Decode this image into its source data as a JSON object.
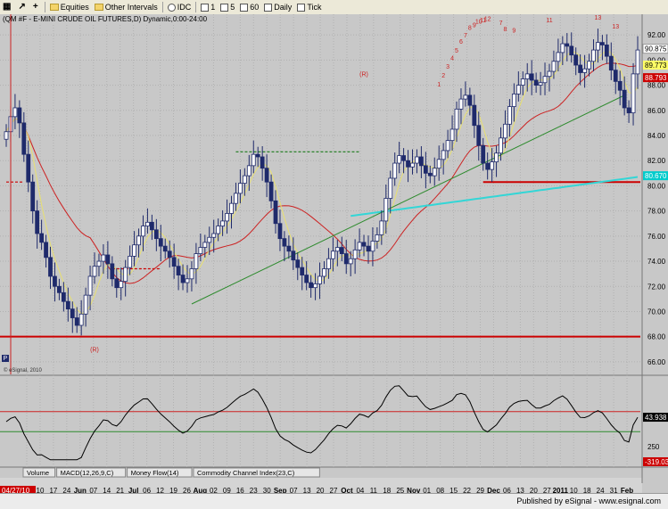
{
  "toolbar": {
    "items": [
      {
        "icon": "chart-icon",
        "label": ""
      },
      {
        "icon": "cursor-icon",
        "label": ""
      },
      {
        "icon": "add-icon",
        "label": "+"
      },
      {
        "icon": "folder-icon",
        "label": "Equities"
      },
      {
        "icon": "folder-icon",
        "label": "Other Intervals"
      },
      {
        "icon": "clock-icon",
        "label": "IDC"
      },
      {
        "icon": "grid-icon",
        "label": "1"
      },
      {
        "icon": "grid-icon",
        "label": "5"
      },
      {
        "icon": "grid-icon",
        "label": "60"
      },
      {
        "icon": "grid-icon",
        "label": "Daily"
      },
      {
        "icon": "grid-icon",
        "label": "Tick"
      }
    ]
  },
  "chart_title": "(QM #F - E-MINI CRUDE OIL FUTURES,D) Dynamic,0:00-24:00",
  "price_axis_ticks": [
    "92.00",
    "90.00",
    "88.00",
    "86.00",
    "84.00",
    "82.00",
    "80.00",
    "78.00",
    "76.00",
    "74.00",
    "72.00",
    "70.00",
    "68.00",
    "66.00"
  ],
  "price_badges": [
    {
      "value": "90.875",
      "color": "#ffffff",
      "bg": "#ffffff"
    },
    {
      "value": "89.773",
      "color": "#000000",
      "bg": "#ffff66"
    },
    {
      "value": "88.793",
      "color": "#ffffff",
      "bg": "#cc0000"
    },
    {
      "value": "80.670",
      "color": "#ffffff",
      "bg": "#00cccc"
    }
  ],
  "watermark": "© eSignal, 2010",
  "indicator_axis_ticks": [
    "250"
  ],
  "indicator_badges": [
    {
      "value": "43.938",
      "color": "#ffffff",
      "bg": "#000000"
    },
    {
      "value": "-319.03",
      "color": "#ffffff",
      "bg": "#cc0000"
    }
  ],
  "indicator_tabs": [
    "Volume",
    "MACD(12,26,9,C)",
    "Money Flow(14)",
    "Commodity Channel Index(23,C)"
  ],
  "date_start_badge": "04/27/10",
  "date_labels": [
    {
      "text": "May",
      "bold": true
    },
    {
      "text": "10",
      "bold": false
    },
    {
      "text": "17",
      "bold": false
    },
    {
      "text": "24",
      "bold": false
    },
    {
      "text": "Jun",
      "bold": true
    },
    {
      "text": "07",
      "bold": false
    },
    {
      "text": "14",
      "bold": false
    },
    {
      "text": "21",
      "bold": false
    },
    {
      "text": "Jul",
      "bold": true
    },
    {
      "text": "06",
      "bold": false
    },
    {
      "text": "12",
      "bold": false
    },
    {
      "text": "19",
      "bold": false
    },
    {
      "text": "26",
      "bold": false
    },
    {
      "text": "Aug",
      "bold": true
    },
    {
      "text": "02",
      "bold": false
    },
    {
      "text": "09",
      "bold": false
    },
    {
      "text": "16",
      "bold": false
    },
    {
      "text": "23",
      "bold": false
    },
    {
      "text": "30",
      "bold": false
    },
    {
      "text": "Sep",
      "bold": true
    },
    {
      "text": "07",
      "bold": false
    },
    {
      "text": "13",
      "bold": false
    },
    {
      "text": "20",
      "bold": false
    },
    {
      "text": "27",
      "bold": false
    },
    {
      "text": "Oct",
      "bold": true
    },
    {
      "text": "04",
      "bold": false
    },
    {
      "text": "11",
      "bold": false
    },
    {
      "text": "18",
      "bold": false
    },
    {
      "text": "25",
      "bold": false
    },
    {
      "text": "Nov",
      "bold": true
    },
    {
      "text": "01",
      "bold": false
    },
    {
      "text": "08",
      "bold": false
    },
    {
      "text": "15",
      "bold": false
    },
    {
      "text": "22",
      "bold": false
    },
    {
      "text": "29",
      "bold": false
    },
    {
      "text": "Dec",
      "bold": true
    },
    {
      "text": "06",
      "bold": false
    },
    {
      "text": "13",
      "bold": false
    },
    {
      "text": "20",
      "bold": false
    },
    {
      "text": "27",
      "bold": false
    },
    {
      "text": "2011",
      "bold": true
    },
    {
      "text": "10",
      "bold": false
    },
    {
      "text": "18",
      "bold": false
    },
    {
      "text": "24",
      "bold": false
    },
    {
      "text": "31",
      "bold": false
    },
    {
      "text": "Feb",
      "bold": true
    }
  ],
  "footer_text": "Published by eSignal - www.esignal.com",
  "chart_data": {
    "type": "line",
    "title": "(QM #F - E-MINI CRUDE OIL FUTURES,D) Dynamic,0:00-24:00",
    "price_ylim": [
      65,
      93.5
    ],
    "closes": [
      84.3,
      85.5,
      86.2,
      85.0,
      82.5,
      80.3,
      78.0,
      76.2,
      75.5,
      74.3,
      72.8,
      72.0,
      71.5,
      70.8,
      70.2,
      69.5,
      68.9,
      69.8,
      71.3,
      72.8,
      73.6,
      74.0,
      74.5,
      73.8,
      72.6,
      71.9,
      72.4,
      73.5,
      74.4,
      75.3,
      76.0,
      76.8,
      77.1,
      76.5,
      75.8,
      75.2,
      74.8,
      74.3,
      73.6,
      72.9,
      72.3,
      72.6,
      73.4,
      74.6,
      75.1,
      75.5,
      75.9,
      76.2,
      76.8,
      77.2,
      77.8,
      78.6,
      79.4,
      80.2,
      80.8,
      81.6,
      82.5,
      82.3,
      81.4,
      80.3,
      78.8,
      77.0,
      75.8,
      75.2,
      74.8,
      74.1,
      73.5,
      72.9,
      72.3,
      71.9,
      72.2,
      72.8,
      73.4,
      74.2,
      74.8,
      75.1,
      74.6,
      73.8,
      74.2,
      74.9,
      75.5,
      75.2,
      74.8,
      75.6,
      76.1,
      77.2,
      79.0,
      80.6,
      81.8,
      82.4,
      82.0,
      81.5,
      81.8,
      82.3,
      81.6,
      81.0,
      80.8,
      81.4,
      82.1,
      82.8,
      83.6,
      84.5,
      86.1,
      86.9,
      87.2,
      86.4,
      84.8,
      83.2,
      81.8,
      81.3,
      81.9,
      82.6,
      83.8,
      84.9,
      86.3,
      87.3,
      88.0,
      88.5,
      88.9,
      88.4,
      88.0,
      88.2,
      88.7,
      89.1,
      89.9,
      90.6,
      91.3,
      91.1,
      90.4,
      89.6,
      89.0,
      89.3,
      89.9,
      90.8,
      91.4,
      91.2,
      90.3,
      89.2,
      88.3,
      87.6,
      86.2,
      85.8,
      88.9,
      90.8
    ],
    "reference_lines": [
      {
        "name": "",
        "value": 68.0,
        "color": "#cc0000"
      },
      {
        "name": "",
        "value": 80.3,
        "color": "#cc0000"
      }
    ],
    "swing_labels": [
      "(R)",
      "(R)",
      "7",
      "8",
      "9",
      "11",
      "13",
      "1",
      "2",
      "3",
      "4",
      "5",
      "6",
      "7",
      "8",
      "9",
      "10",
      "11",
      "12",
      "13"
    ],
    "indicator": {
      "name": "Commodity Channel Index(23,C)",
      "last": 43.938
    }
  }
}
